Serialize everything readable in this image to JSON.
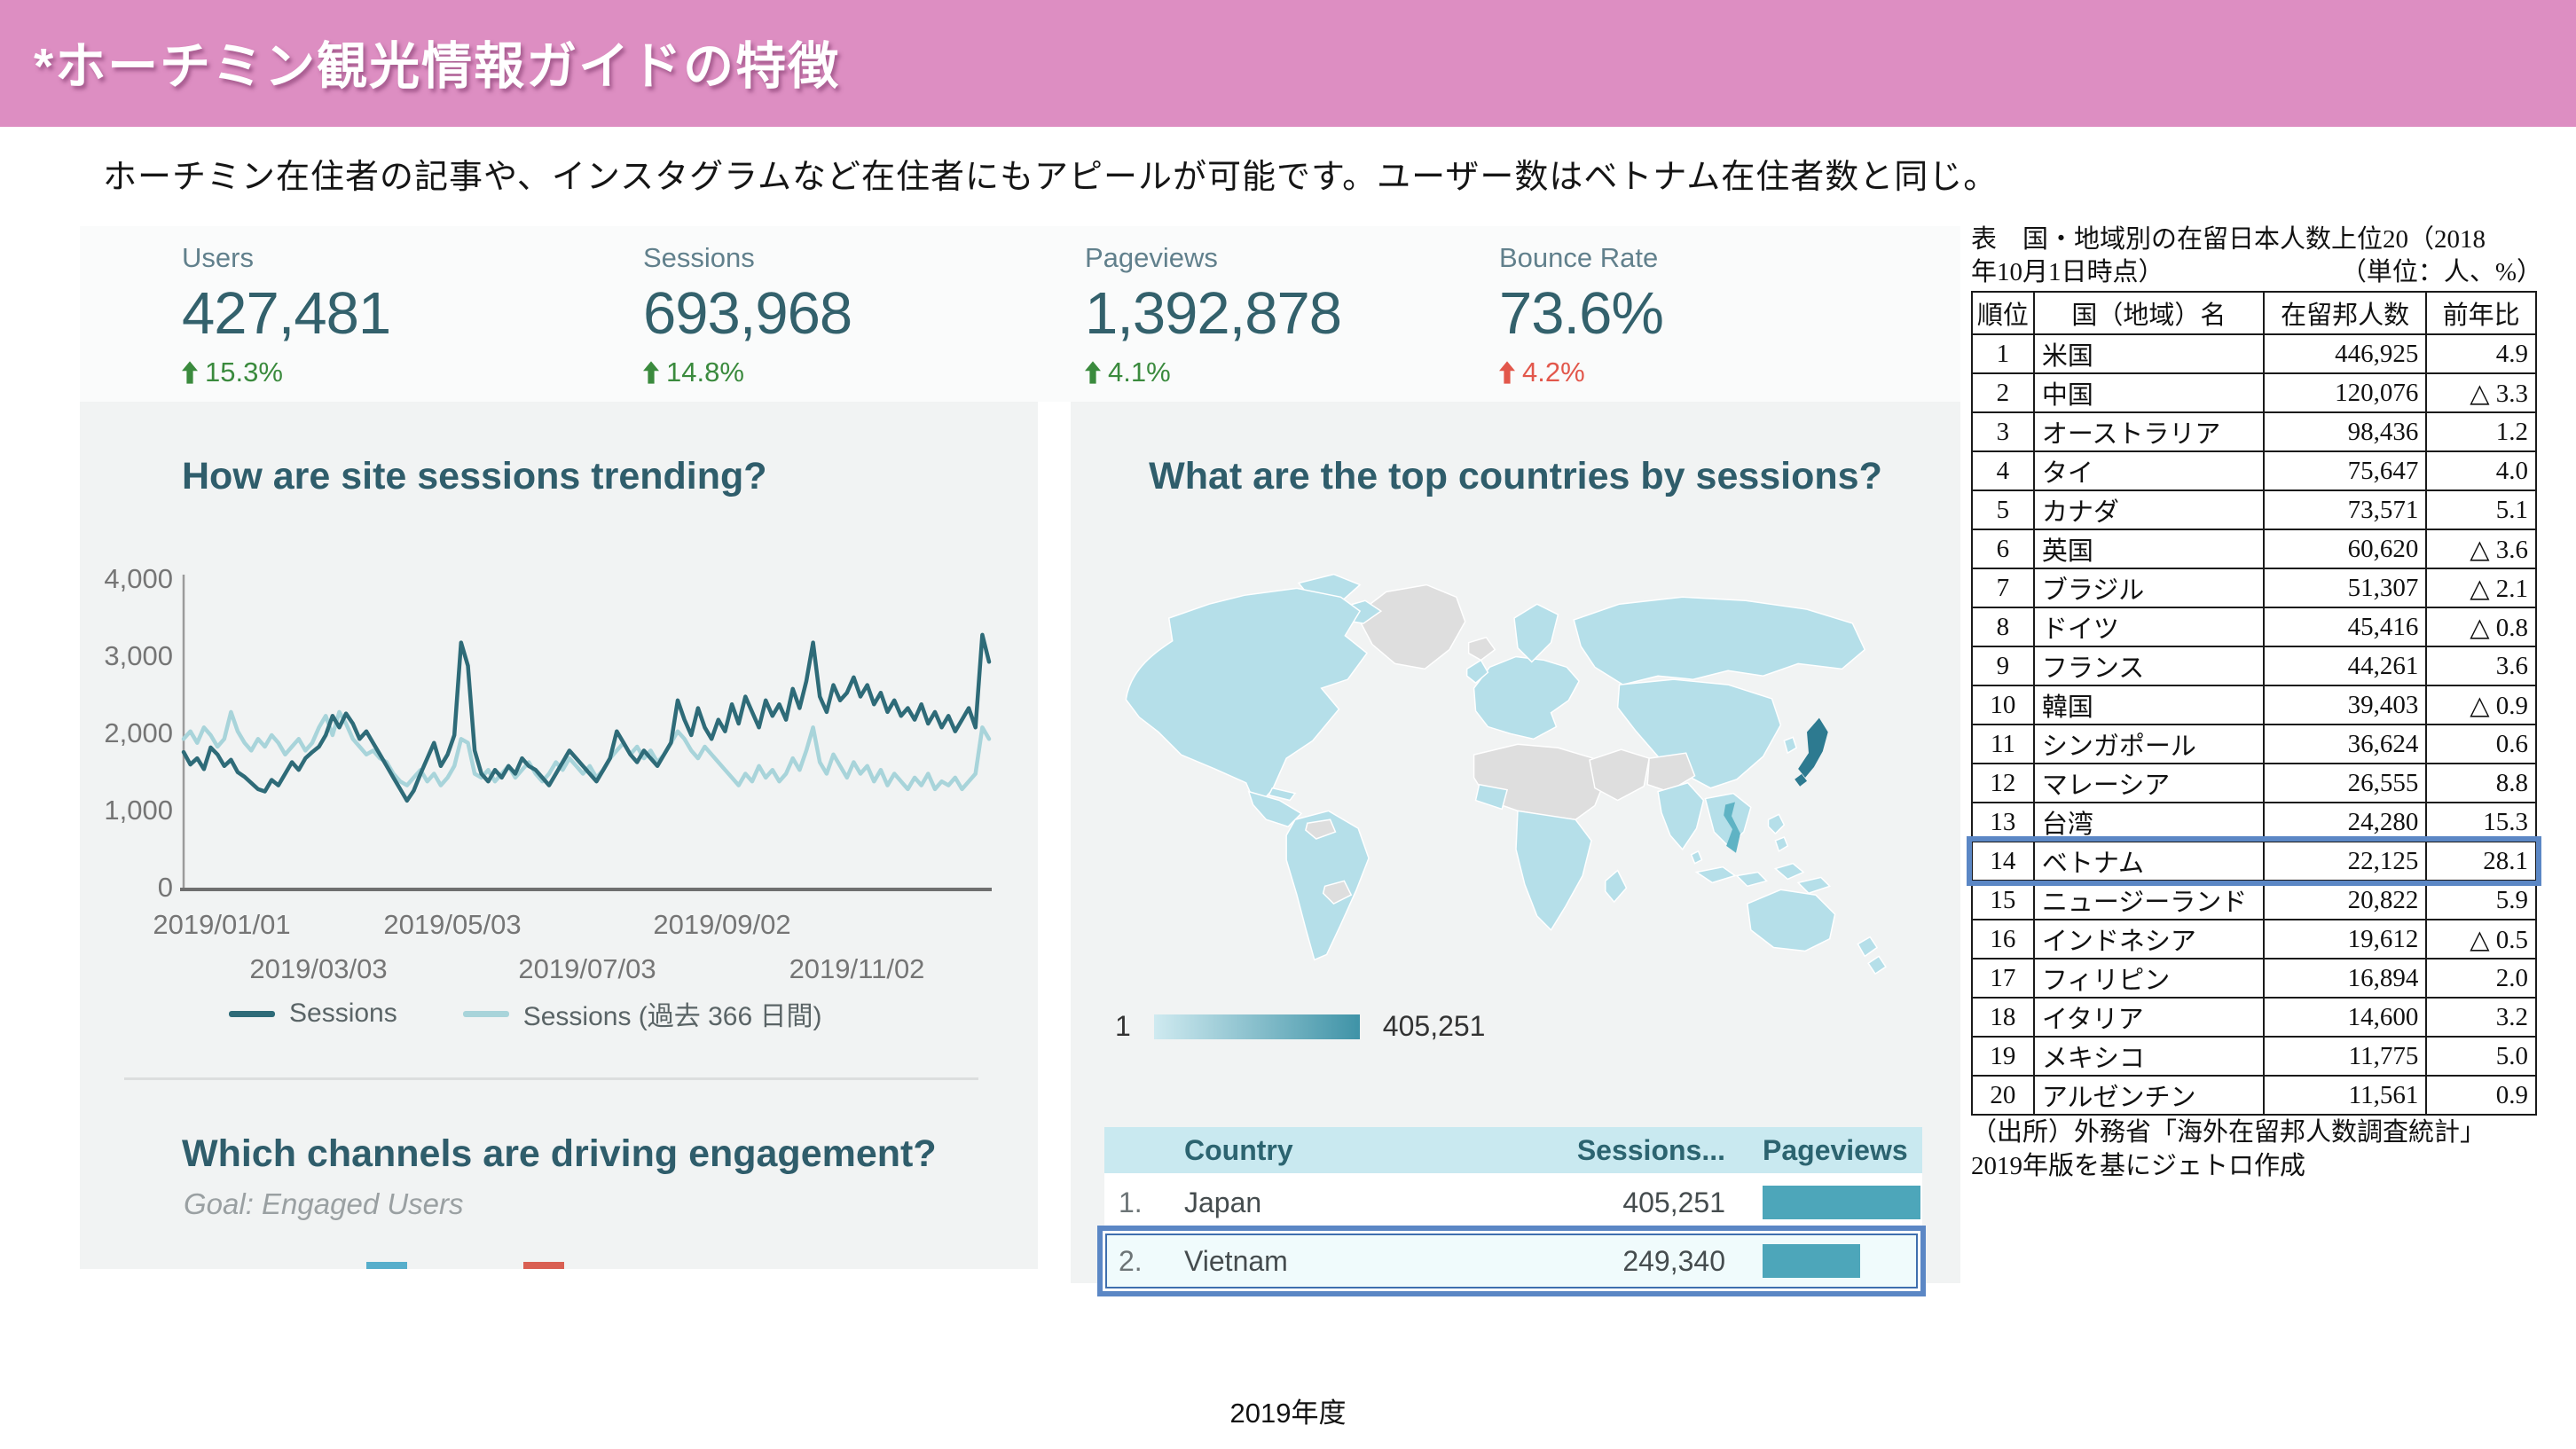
{
  "slide": {
    "title": "*ホーチミン観光情報ガイドの特徴",
    "subtitle": "ホーチミン在住者の記事や、インスタグラムなど在住者にもアピールが可能です。ユーザー数はベトナム在住者数と同じ。",
    "footer": "2019年度"
  },
  "colors": {
    "header_pink": "#dd8ec2",
    "card_bg": "#f1f3f3",
    "metric_label": "#61808c",
    "metric_value": "#33616c",
    "delta_good": "#3a8a3d",
    "delta_bad": "#e2574b",
    "chart_title": "#2f5d6b",
    "series_current": "#2e6b78",
    "series_previous": "#a8d4da",
    "table_header_bg": "#c9e9f0",
    "bar_teal": "#4da6ba",
    "annotation_blue": "#5b87c5",
    "map_land": "#b5dfe9",
    "map_nodata": "#dedede",
    "map_japan": "#2d7a90",
    "map_vietnam": "#5fb3c4",
    "scale_from": "#cfeaf0",
    "scale_to": "#3f93a7",
    "stub_blue": "#56aecb",
    "stub_red": "#d95f52"
  },
  "metrics": [
    {
      "label": "Users",
      "value": "427,481",
      "delta": "15.3%",
      "direction": "up",
      "trend": "good"
    },
    {
      "label": "Sessions",
      "value": "693,968",
      "delta": "14.8%",
      "direction": "up",
      "trend": "good"
    },
    {
      "label": "Pageviews",
      "value": "1,392,878",
      "delta": "4.1%",
      "direction": "up",
      "trend": "good"
    },
    {
      "label": "Bounce Rate",
      "value": "73.6%",
      "delta": "4.2%",
      "direction": "up",
      "trend": "bad"
    }
  ],
  "engagement": {
    "title": "Which channels are driving engagement?",
    "goal": "Goal: Engaged Users"
  },
  "chart_data": [
    {
      "id": "sessions_trend",
      "type": "line",
      "title": "How are site sessions trending?",
      "xlabel": "",
      "ylabel": "",
      "ylim": [
        0,
        4000
      ],
      "y_ticks": [
        "0",
        "1,000",
        "2,000",
        "3,000",
        "4,000"
      ],
      "x_tick_labels_row1": [
        "2019/01/01",
        "2019/05/03",
        "2019/09/02"
      ],
      "x_tick_labels_row2": [
        "2019/03/03",
        "2019/07/03",
        "2019/11/02"
      ],
      "x_tick_days": [
        0,
        122,
        244,
        61,
        183,
        305
      ],
      "x_range_days": 365,
      "grid": false,
      "legend_position": "bottom",
      "series": [
        {
          "name": "Sessions",
          "color": "#2e6b78",
          "values": [
            1780,
            1620,
            1700,
            1560,
            1840,
            1750,
            1600,
            1680,
            1520,
            1460,
            1380,
            1300,
            1270,
            1420,
            1350,
            1500,
            1650,
            1550,
            1700,
            1780,
            1850,
            2000,
            2250,
            2100,
            2280,
            2150,
            1950,
            2050,
            1900,
            1750,
            1600,
            1450,
            1300,
            1150,
            1280,
            1500,
            1700,
            1900,
            1600,
            1750,
            2000,
            3200,
            2900,
            1800,
            1500,
            1400,
            1550,
            1450,
            1600,
            1500,
            1700,
            1600,
            1550,
            1450,
            1350,
            1500,
            1650,
            1800,
            1700,
            1600,
            1500,
            1400,
            1550,
            1700,
            2050,
            1900,
            1750,
            1650,
            1800,
            1700,
            1600,
            1750,
            1900,
            2450,
            2200,
            2000,
            2350,
            2100,
            1950,
            2200,
            2050,
            2400,
            2150,
            2500,
            2300,
            2100,
            2450,
            2250,
            2400,
            2200,
            2600,
            2350,
            2700,
            3200,
            2500,
            2300,
            2650,
            2450,
            2550,
            2750,
            2500,
            2650,
            2400,
            2550,
            2300,
            2450,
            2250,
            2350,
            2200,
            2400,
            2150,
            2300,
            2100,
            2250,
            2050,
            2200,
            2350,
            2100,
            3300,
            2950
          ]
        },
        {
          "name": "Sessions (過去 366 日間)",
          "color": "#a8d4da",
          "values": [
            1950,
            2050,
            1900,
            2100,
            2000,
            1850,
            1950,
            2300,
            2050,
            1900,
            1800,
            1950,
            1850,
            2000,
            1900,
            1750,
            1850,
            1950,
            1800,
            1900,
            2100,
            2250,
            2000,
            2300,
            2150,
            1950,
            1850,
            1750,
            1800,
            1700,
            1650,
            1500,
            1400,
            1350,
            1450,
            1550,
            1400,
            1500,
            1350,
            1450,
            1600,
            1950,
            1900,
            1500,
            1450,
            1550,
            1400,
            1500,
            1600,
            1450,
            1550,
            1650,
            1500,
            1400,
            1500,
            1650,
            1550,
            1700,
            1600,
            1500,
            1600,
            1450,
            1550,
            1700,
            1800,
            1900,
            1750,
            1850,
            1700,
            1800,
            1650,
            1750,
            1900,
            2050,
            1950,
            1800,
            1700,
            1850,
            1750,
            1650,
            1550,
            1450,
            1350,
            1500,
            1400,
            1600,
            1450,
            1550,
            1400,
            1500,
            1700,
            1550,
            1800,
            2100,
            1650,
            1500,
            1750,
            1600,
            1450,
            1650,
            1500,
            1600,
            1400,
            1550,
            1350,
            1500,
            1400,
            1300,
            1450,
            1350,
            1500,
            1300,
            1400,
            1350,
            1450,
            1300,
            1400,
            1500,
            2100,
            1950
          ]
        }
      ]
    },
    {
      "id": "sessions_by_country_map",
      "type": "heatmap",
      "subtype": "choropleth_world_map",
      "title": "What are the top countries by sessions?",
      "scale": {
        "min_label": "1",
        "max_label": "405,251"
      },
      "values": [
        {
          "country": "Japan",
          "sessions": 405251
        },
        {
          "country": "Vietnam",
          "sessions": 249340
        }
      ]
    },
    {
      "id": "top_countries_table",
      "type": "table",
      "headers": [
        "Country",
        "Sessions...",
        "Pageviews"
      ],
      "rows": [
        {
          "rank": "1.",
          "country": "Japan",
          "sessions": "405,251",
          "sessions_value": 405251
        },
        {
          "rank": "2.",
          "country": "Vietnam",
          "sessions": "249,340",
          "sessions_value": 249340
        }
      ],
      "highlighted_row": "Vietnam"
    },
    {
      "id": "japanese_residents_ranking",
      "type": "table",
      "title_line1": "表　国・地域別の在留日本人数上位20（2018",
      "title_line2_left": "年10月1日時点）",
      "title_line2_right": "（単位：人、%）",
      "headers": [
        "順位",
        "国（地域）名",
        "在留邦人数",
        "前年比"
      ],
      "rows": [
        [
          "1",
          "米国",
          "446,925",
          "4.9"
        ],
        [
          "2",
          "中国",
          "120,076",
          "△ 3.3"
        ],
        [
          "3",
          "オーストラリア",
          "98,436",
          "1.2"
        ],
        [
          "4",
          "タイ",
          "75,647",
          "4.0"
        ],
        [
          "5",
          "カナダ",
          "73,571",
          "5.1"
        ],
        [
          "6",
          "英国",
          "60,620",
          "△ 3.6"
        ],
        [
          "7",
          "ブラジル",
          "51,307",
          "△ 2.1"
        ],
        [
          "8",
          "ドイツ",
          "45,416",
          "△ 0.8"
        ],
        [
          "9",
          "フランス",
          "44,261",
          "3.6"
        ],
        [
          "10",
          "韓国",
          "39,403",
          "△ 0.9"
        ],
        [
          "11",
          "シンガポール",
          "36,624",
          "0.6"
        ],
        [
          "12",
          "マレーシア",
          "26,555",
          "8.8"
        ],
        [
          "13",
          "台湾",
          "24,280",
          "15.3"
        ],
        [
          "14",
          "ベトナム",
          "22,125",
          "28.1"
        ],
        [
          "15",
          "ニュージーランド",
          "20,822",
          "5.9"
        ],
        [
          "16",
          "インドネシア",
          "19,612",
          "△ 0.5"
        ],
        [
          "17",
          "フィリピン",
          "16,894",
          "2.0"
        ],
        [
          "18",
          "イタリア",
          "14,600",
          "3.2"
        ],
        [
          "19",
          "メキシコ",
          "11,775",
          "5.0"
        ],
        [
          "20",
          "アルゼンチン",
          "11,561",
          "0.9"
        ]
      ],
      "highlighted_rank": "14",
      "note_line1": "（出所）外務省「海外在留邦人数調査統計」",
      "note_line2": "2019年版を基にジェトロ作成"
    }
  ]
}
